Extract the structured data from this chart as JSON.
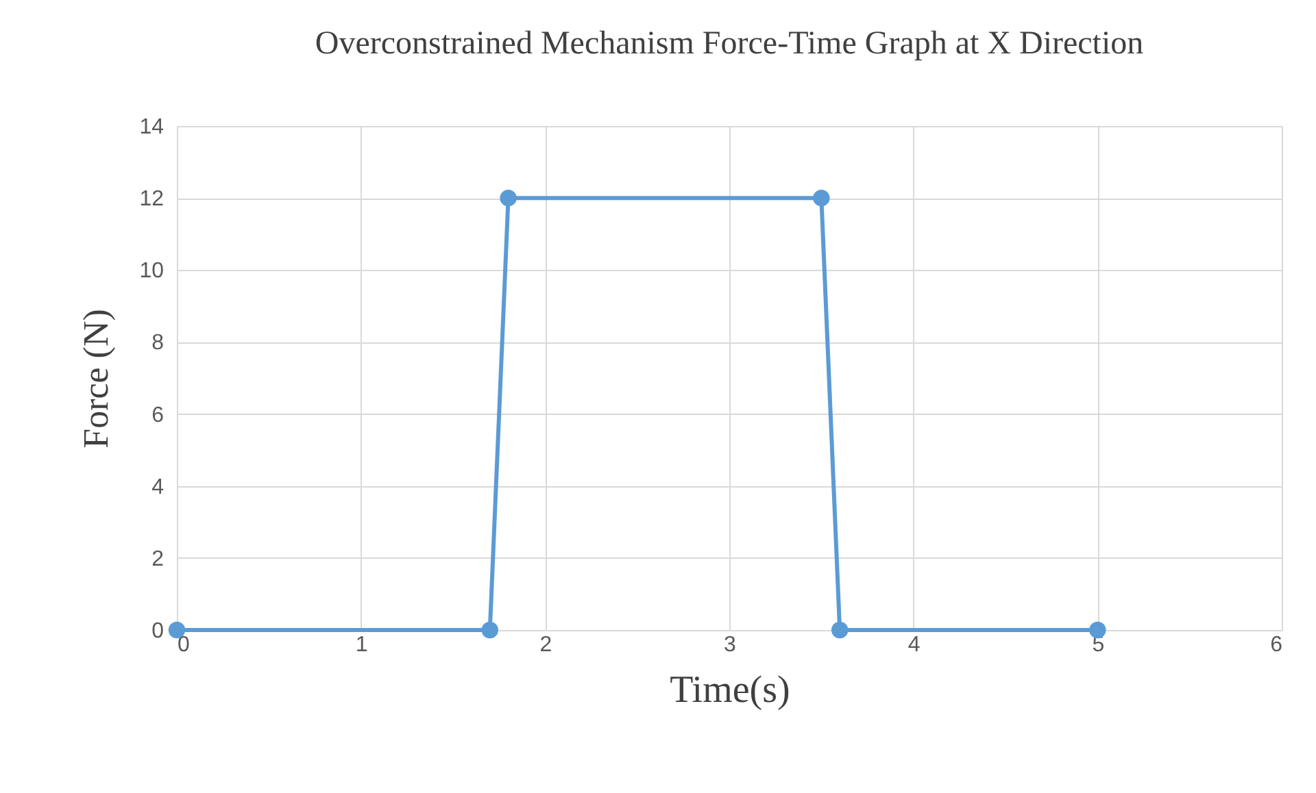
{
  "chart_data": {
    "type": "line",
    "title": "Overconstrained Mechanism Force-Time Graph at X Direction",
    "xlabel": "Time(s)",
    "ylabel": "Force (N)",
    "x": [
      0,
      1.7,
      1.8,
      3.5,
      3.6,
      5
    ],
    "series": [
      {
        "color": "#5b9bd5",
        "values": [
          0,
          0,
          12,
          12,
          0,
          0
        ]
      }
    ],
    "xlim": [
      0,
      6
    ],
    "xticks": [
      0,
      1,
      2,
      3,
      4,
      5,
      6
    ],
    "ylim": [
      0,
      14
    ],
    "yticks": [
      0,
      2,
      4,
      6,
      8,
      10,
      12,
      14
    ],
    "grid": true,
    "marker": "circle",
    "line_style": "solid"
  }
}
